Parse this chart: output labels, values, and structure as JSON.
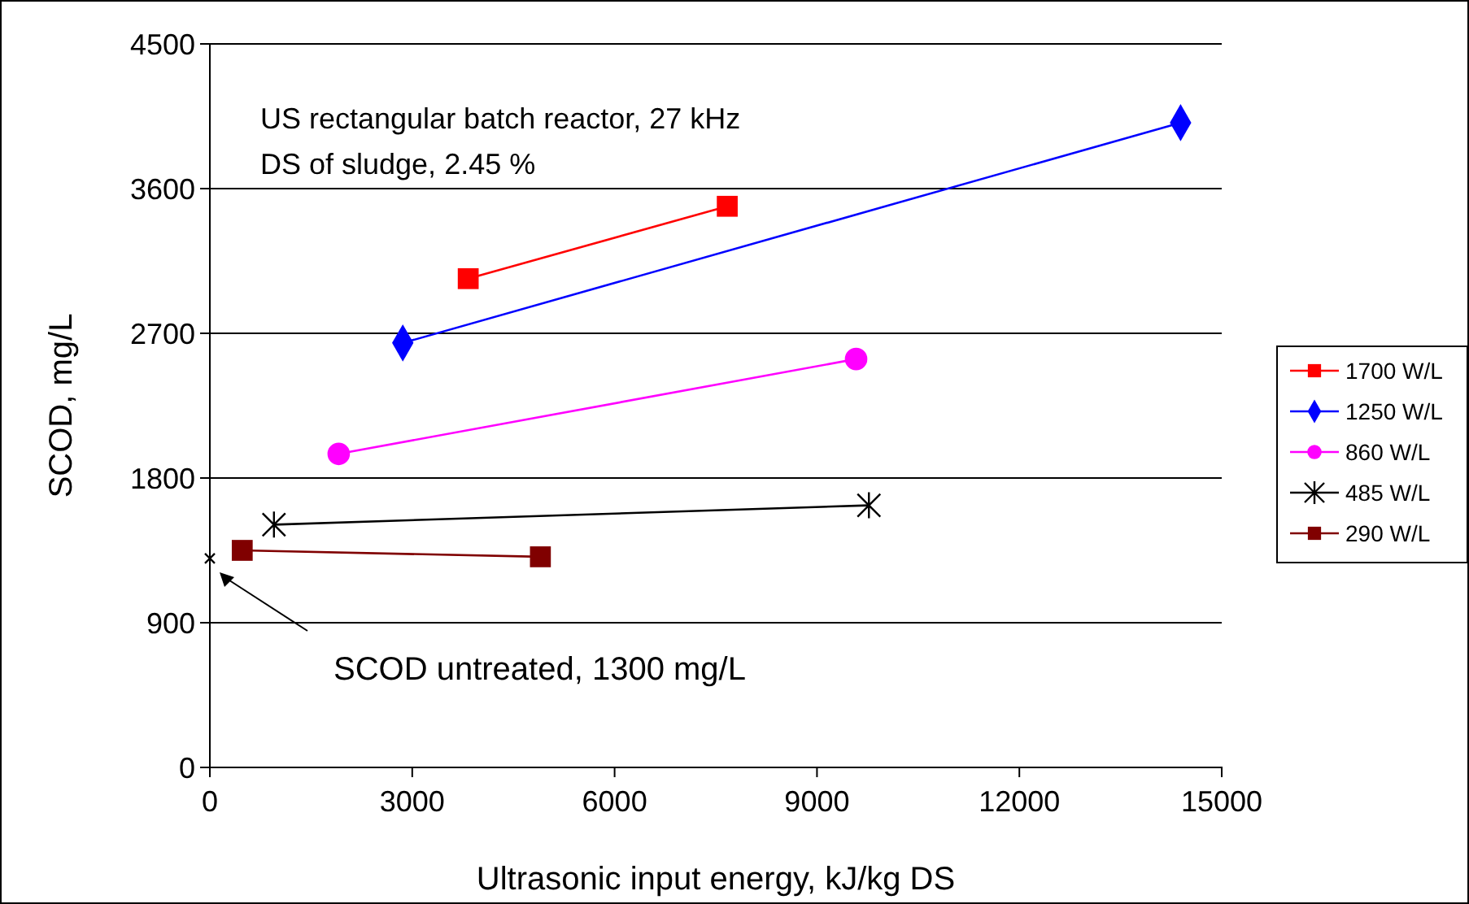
{
  "chart_data": {
    "type": "line",
    "xlabel": "Ultrasonic input energy, kJ/kg DS",
    "ylabel": "SCOD, mg/L",
    "xlim": [
      0,
      15000
    ],
    "xticks": [
      0,
      3000,
      6000,
      9000,
      12000,
      15000
    ],
    "ylim": [
      0,
      4500
    ],
    "yticks": [
      0,
      900,
      1800,
      2700,
      3600,
      4500
    ],
    "grid": "y",
    "legend": "right",
    "annotations": [
      "US rectangular batch reactor, 27 kHz",
      "DS of sludge, 2.45 %",
      "SCOD untreated, 1300 mg/L"
    ],
    "series": [
      {
        "name": "1700 W/L",
        "color": "#ff0000",
        "marker": "square",
        "x": [
          3830,
          7670
        ],
        "values": [
          3040,
          3490
        ]
      },
      {
        "name": "1250 W/L",
        "color": "#0000ff",
        "marker": "diamond",
        "x": [
          2860,
          14390
        ],
        "values": [
          2640,
          4010
        ]
      },
      {
        "name": "860 W/L",
        "color": "#ff00ff",
        "marker": "circle",
        "x": [
          1910,
          9580
        ],
        "values": [
          1950,
          2540
        ]
      },
      {
        "name": "485 W/L",
        "color": "#000000",
        "marker": "cross",
        "x": [
          950,
          9770
        ],
        "values": [
          1510,
          1630
        ]
      },
      {
        "name": "290 W/L",
        "color": "#800000",
        "marker": "square",
        "x": [
          480,
          4900
        ],
        "values": [
          1350,
          1310
        ]
      },
      {
        "type": "scatter",
        "color": "#000000",
        "marker": "cross",
        "x": [
          0
        ],
        "values": [
          1300
        ]
      }
    ]
  }
}
